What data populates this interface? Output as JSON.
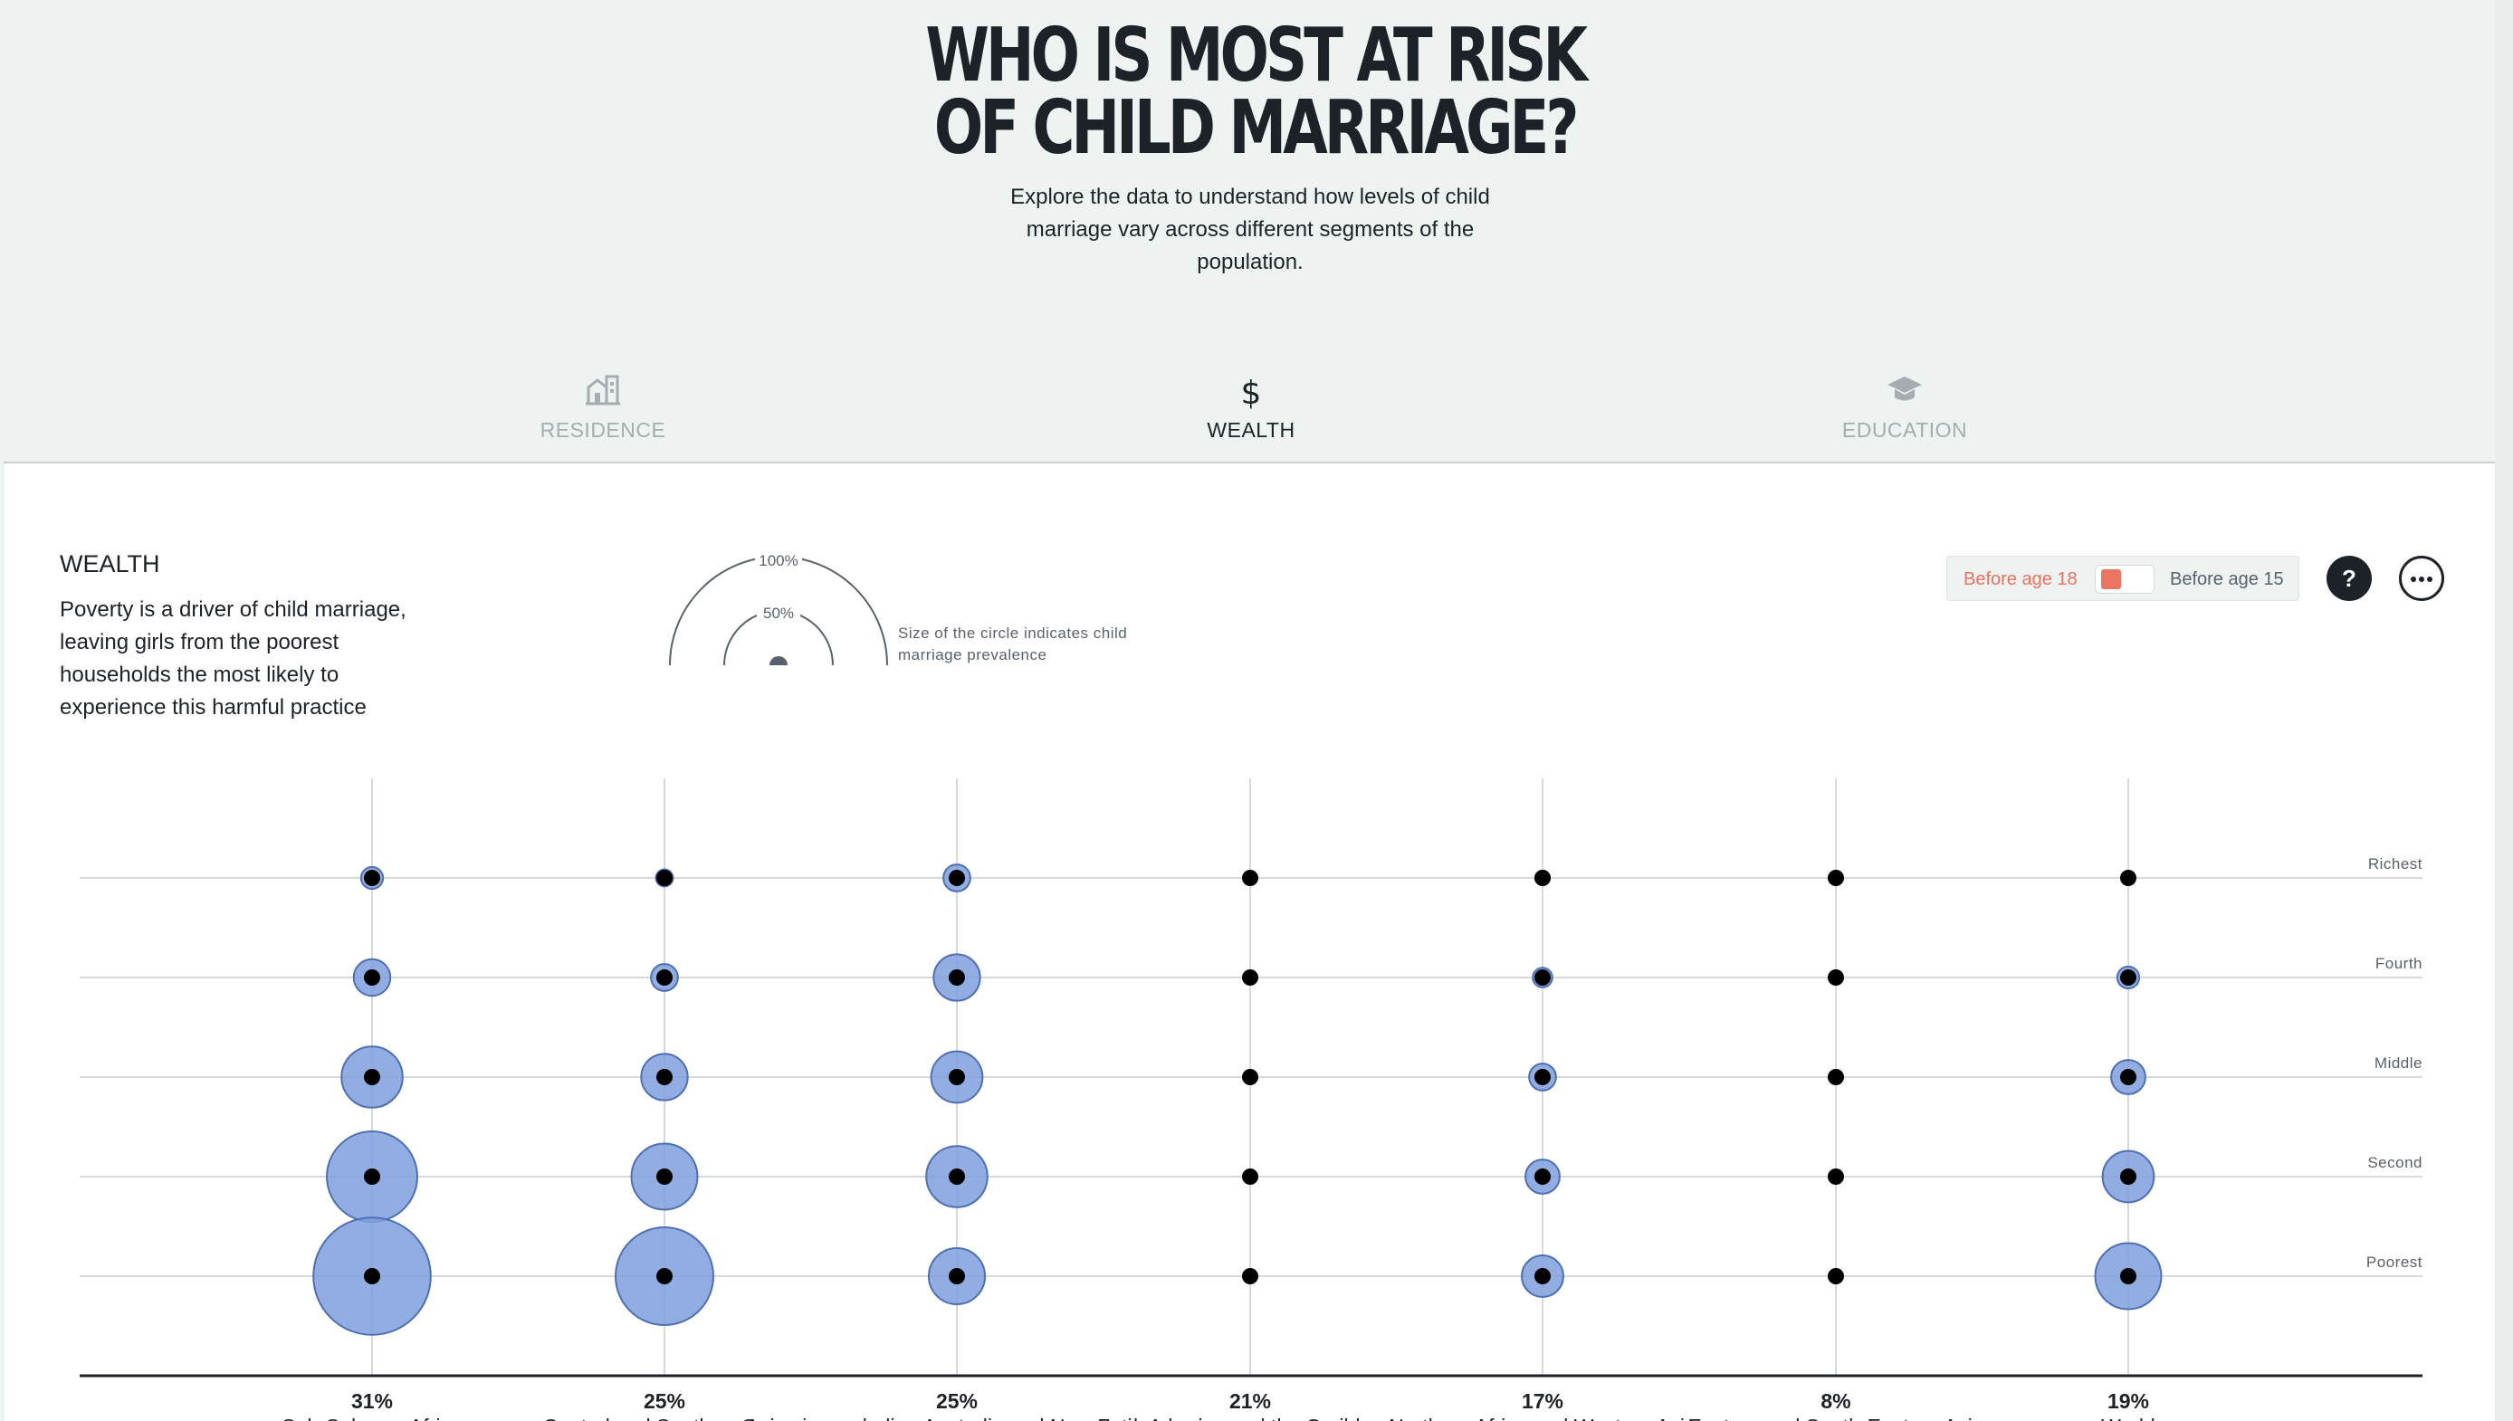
{
  "header": {
    "title_line1": "WHO IS MOST AT RISK",
    "title_line2": "OF CHILD MARRIAGE?",
    "subtitle": "Explore the data to understand how levels of child marriage vary across different segments of the population."
  },
  "tabs": [
    {
      "label": "RESIDENCE",
      "icon": "building-icon",
      "active": false
    },
    {
      "label": "WEALTH",
      "icon": "dollar-icon",
      "active": true
    },
    {
      "label": "EDUCATION",
      "icon": "graduation-cap-icon",
      "active": false
    }
  ],
  "section": {
    "title": "WEALTH",
    "description": "Poverty is a driver of child marriage, leaving girls from the poorest households the most likely to experience this harmful practice"
  },
  "size_legend": {
    "outer_label": "100%",
    "inner_label": "50%",
    "text": "Size of the circle indicates child marriage prevalence"
  },
  "toggle": {
    "option_a": "Before age 18",
    "option_b": "Before age 15",
    "selected": "Before age 18"
  },
  "buttons": {
    "help_label": "?",
    "more_icon": "ellipsis-icon"
  },
  "colors": {
    "bubble_fill": "#7f9fdc",
    "bubble_stroke": "#4f6fb3",
    "accent": "#ec7562",
    "ink": "#1d2228"
  },
  "chart_data": {
    "type": "bubble-grid",
    "rows": [
      "Richest",
      "Fourth",
      "Middle",
      "Second",
      "Poorest"
    ],
    "columns": [
      {
        "name": "Sub-Saharan Africa",
        "total": "31%",
        "values": [
          9,
          15,
          25,
          37,
          48
        ]
      },
      {
        "name": "Central and Southern Asia",
        "total": "25%",
        "values": [
          7,
          11,
          19,
          27,
          40
        ]
      },
      {
        "name": "Oceania, excluding Australia and New Zealand",
        "total": "25%",
        "values": [
          11,
          19,
          21,
          25,
          23
        ]
      },
      {
        "name": "Latin America and the Caribbean",
        "total": "21%",
        "values": [
          null,
          null,
          null,
          null,
          null
        ]
      },
      {
        "name": "Northern Africa and Western Asia",
        "total": "17%",
        "values": [
          6,
          8,
          11,
          14,
          17
        ]
      },
      {
        "name": "Eastern and South-Eastern Asia",
        "total": "8%",
        "values": [
          null,
          null,
          null,
          null,
          null
        ]
      },
      {
        "name": "World",
        "total": "19%",
        "values": [
          5,
          9,
          14,
          21,
          27
        ]
      }
    ]
  }
}
